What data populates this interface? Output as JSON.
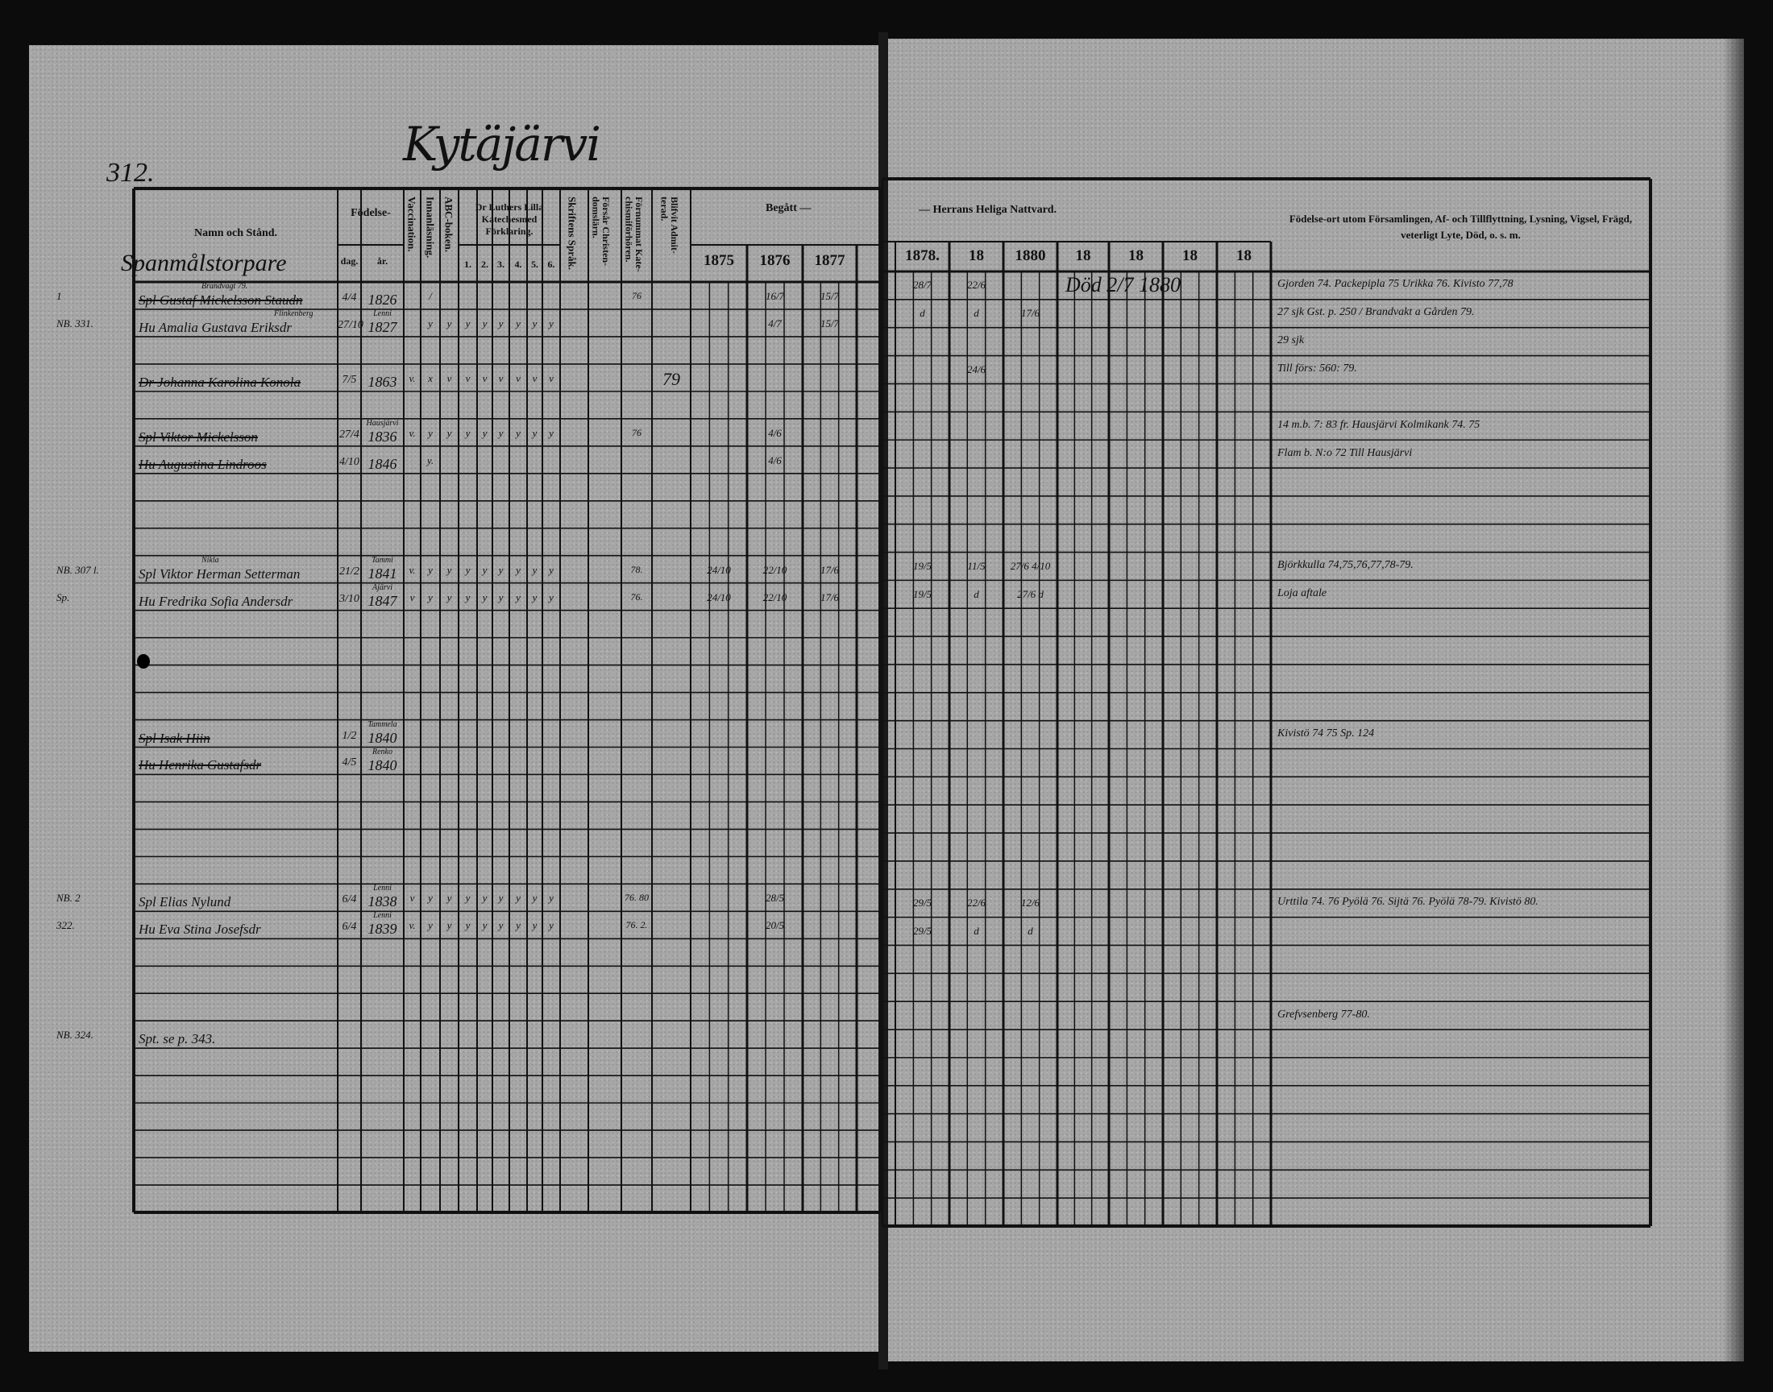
{
  "header": {
    "page_number": "312.",
    "parish": "Kytäjärvi",
    "category": "Spanmålstorpare",
    "col_name": "Namn och Stånd.",
    "col_birth": "Födelse-",
    "col_day": "dag.",
    "col_year": "år.",
    "col_vaccination": "Vaccination.",
    "col_reading": "Innanläsning.",
    "col_abc": "ABC-boken.",
    "col_luther": "Dr Luthers Lilla Katechesmed Förklaring.",
    "luther_sub": [
      "1.",
      "2.",
      "3.",
      "4.",
      "5.",
      "6."
    ],
    "col_skrift": "Skriftens Språk.",
    "col_forsar": "Försår Christen-\ndomslärn.",
    "col_fornummat": "Förnummat Kate-\nchismiförhören.",
    "col_admitted": "Blifvit Admit-\nterad.",
    "begatt": "Begått —",
    "nattvard": "— Herrans Heliga Nattvard.",
    "begatt_years": [
      "1875",
      "1876",
      "1877"
    ],
    "nattvard_years": [
      "1878.",
      "18",
      "1880",
      "18",
      "18",
      "18",
      "18"
    ],
    "remarks_header": "Födelse-ort utom Församlingen, Af- och Tillflyttning, Lysning, Vigsel, Frägd, veterligt Lyte, Död, o. s. m."
  },
  "entries": [
    {
      "row": 0,
      "above": "Brandvagt 79.",
      "name": "Spl Gustaf Mickelsson Staudn",
      "struck": true,
      "dag": "4/4",
      "ar": "1826",
      "ar_place": "",
      "marks": [
        "",
        "/",
        "",
        "",
        "",
        "",
        "",
        "",
        ""
      ],
      "fornummat": "76",
      "blifvit": "",
      "begatt": [
        "",
        "16/7",
        "15/7"
      ],
      "nattvard": [
        "28/7",
        "22/6",
        "",
        "",
        "",
        "",
        ""
      ],
      "margin": "1"
    },
    {
      "row": 1,
      "above": "Flinkenberg",
      "name": "Hu Amalia Gustava Eriksdr",
      "struck": false,
      "dag": "27/10",
      "ar": "1827",
      "ar_place": "Lenni",
      "marks": [
        "",
        "y",
        "y",
        "y",
        "y",
        "y",
        "y",
        "y",
        "y"
      ],
      "fornummat": "",
      "blifvit": "",
      "begatt": [
        "",
        "4/7",
        "15/7"
      ],
      "nattvard": [
        "d",
        "d",
        "17/6",
        "",
        "",
        "",
        ""
      ],
      "margin": "NB. 331."
    },
    {
      "row": 3,
      "above": "",
      "name": "Dr Johanna Karolina Konola",
      "struck": true,
      "dag": "7/5",
      "ar": "1863",
      "ar_place": "",
      "marks": [
        "v.",
        "x",
        "v",
        "v",
        "v",
        "v",
        "v",
        "v",
        "v"
      ],
      "fornummat": "",
      "blifvit": "79",
      "begatt": [
        "",
        "",
        ""
      ],
      "nattvard": [
        "",
        "24/6",
        "",
        "",
        "",
        "",
        ""
      ],
      "margin": ""
    },
    {
      "row": 5,
      "above": "",
      "name": "Spl Viktor Mickelsson",
      "struck": true,
      "dag": "27/4",
      "ar": "1836",
      "ar_place": "Hausjärvi",
      "marks": [
        "v.",
        "y",
        "y",
        "y",
        "y",
        "y",
        "y",
        "y",
        "y"
      ],
      "fornummat": "76",
      "blifvit": "",
      "begatt": [
        "",
        "4/6",
        ""
      ],
      "nattvard": [
        "",
        "",
        "",
        "",
        "",
        "",
        ""
      ],
      "margin": ""
    },
    {
      "row": 6,
      "above": "",
      "name": "Hu Augustina Lindroos",
      "struck": true,
      "dag": "4/10",
      "ar": "1846",
      "ar_place": "",
      "marks": [
        "",
        "y.",
        "",
        "",
        "",
        "",
        "",
        "",
        ""
      ],
      "fornummat": "",
      "blifvit": "",
      "begatt": [
        "",
        "4/6",
        ""
      ],
      "nattvard": [
        "",
        "",
        "",
        "",
        "",
        "",
        ""
      ],
      "margin": ""
    },
    {
      "row": 10,
      "above": "Nikla",
      "name": "Spl Viktor Herman Setterman",
      "struck": false,
      "dag": "21/2",
      "ar": "1841",
      "ar_place": "Tammi",
      "marks": [
        "v.",
        "y",
        "y",
        "y",
        "y",
        "y",
        "y",
        "y",
        "y"
      ],
      "fornummat": "78.",
      "blifvit": "",
      "begatt": [
        "24/10",
        "22/10",
        "17/6"
      ],
      "nattvard": [
        "19/5",
        "11/5",
        "27/6 4/10",
        "",
        "",
        "",
        ""
      ],
      "margin": "NB. 307 l."
    },
    {
      "row": 11,
      "above": "",
      "name": "Hu Fredrika Sofia Andersdr",
      "struck": false,
      "dag": "3/10",
      "ar": "1847",
      "ar_place": "Ajärvi",
      "marks": [
        "v",
        "y",
        "y",
        "y",
        "y",
        "y",
        "y",
        "y",
        "y"
      ],
      "fornummat": "76.",
      "blifvit": "",
      "begatt": [
        "24/10",
        "22/10",
        "17/6"
      ],
      "nattvard": [
        "19/5",
        "d",
        "27/6 d",
        "",
        "",
        "",
        ""
      ],
      "margin": "Sp."
    },
    {
      "row": 16,
      "above": "",
      "name": "Spl Isak Hiin",
      "struck": true,
      "dag": "1/2",
      "ar": "1840",
      "ar_place": "Tammela",
      "marks": [
        "",
        "",
        "",
        "",
        "",
        "",
        "",
        "",
        ""
      ],
      "fornummat": "",
      "blifvit": "",
      "begatt": [
        "",
        "",
        ""
      ],
      "nattvard": [
        "",
        "",
        "",
        "",
        "",
        "",
        ""
      ],
      "margin": ""
    },
    {
      "row": 17,
      "above": "",
      "name": "Hu Henrika Gustafsdr",
      "struck": true,
      "dag": "4/5",
      "ar": "1840",
      "ar_place": "Renko",
      "marks": [
        "",
        "",
        "",
        "",
        "",
        "",
        "",
        "",
        ""
      ],
      "fornummat": "",
      "blifvit": "",
      "begatt": [
        "",
        "",
        ""
      ],
      "nattvard": [
        "",
        "",
        "",
        "",
        "",
        "",
        ""
      ],
      "margin": ""
    },
    {
      "row": 22,
      "above": "",
      "name": "Spl Elias Nylund",
      "struck": false,
      "dag": "6/4",
      "ar": "1838",
      "ar_place": "Lenni",
      "marks": [
        "v",
        "y",
        "y",
        "y",
        "y",
        "y",
        "y",
        "y",
        "y"
      ],
      "fornummat": "76. 80",
      "blifvit": "",
      "begatt": [
        "",
        "28/5",
        ""
      ],
      "nattvard": [
        "29/5",
        "22/6",
        "12/6",
        "",
        "",
        "",
        ""
      ],
      "margin": "NB. 2"
    },
    {
      "row": 23,
      "above": "",
      "name": "Hu Eva Stina Josefsdr",
      "struck": false,
      "dag": "6/4",
      "ar": "1839",
      "ar_place": "Lenni",
      "marks": [
        "v.",
        "y",
        "y",
        "y",
        "y",
        "y",
        "y",
        "y",
        "y"
      ],
      "fornummat": "76. 2.",
      "blifvit": "",
      "begatt": [
        "",
        "20/5",
        ""
      ],
      "nattvard": [
        "29/5",
        "d",
        "d",
        "",
        "",
        "",
        ""
      ],
      "margin": "322."
    },
    {
      "row": 27,
      "above": "",
      "name": "Spt. se p. 343.",
      "struck": false,
      "dag": "",
      "ar": "",
      "ar_place": "",
      "marks": [
        "",
        "",
        "",
        "",
        "",
        "",
        "",
        "",
        ""
      ],
      "fornummat": "",
      "blifvit": "",
      "begatt": [
        "",
        "",
        ""
      ],
      "nattvard": [
        "",
        "",
        "",
        "",
        "",
        "",
        ""
      ],
      "margin": "NB. 324."
    }
  ],
  "death_note": {
    "row": 0,
    "text": "Död 2/7 1880"
  },
  "remarks": [
    {
      "row": 0,
      "text": "Gjorden 74. Packepipla 75 Urikka 76. Kivisto 77,78"
    },
    {
      "row": 1,
      "text": "27 sjk Gst. p. 250 / Brandvakt a Gården 79."
    },
    {
      "row": 2,
      "text": "29 sjk"
    },
    {
      "row": 3,
      "text": "Till förs: 560: 79."
    },
    {
      "row": 5,
      "text": "14 m.b. 7: 83 fr. Hausjärvi Kolmikank 74. 75"
    },
    {
      "row": 6,
      "text": "Flam b. N:o 72 Till Hausjärvi"
    },
    {
      "row": 10,
      "text": "Björkkulla 74,75,76,77,78-79."
    },
    {
      "row": 11,
      "text": "Loja aftale"
    },
    {
      "row": 16,
      "text": "Kivistö 74 75 Sp. 124"
    },
    {
      "row": 22,
      "text": "Urttila 74. 76 Pyölä 76. Sijtä 76. Pyölä 78-79. Kivistö 80."
    },
    {
      "row": 26,
      "text": "Grefvsenberg 77-80."
    }
  ],
  "colors": {
    "paper": "#a7a7a7",
    "ink": "#111111",
    "background": "#0c0c0c"
  }
}
